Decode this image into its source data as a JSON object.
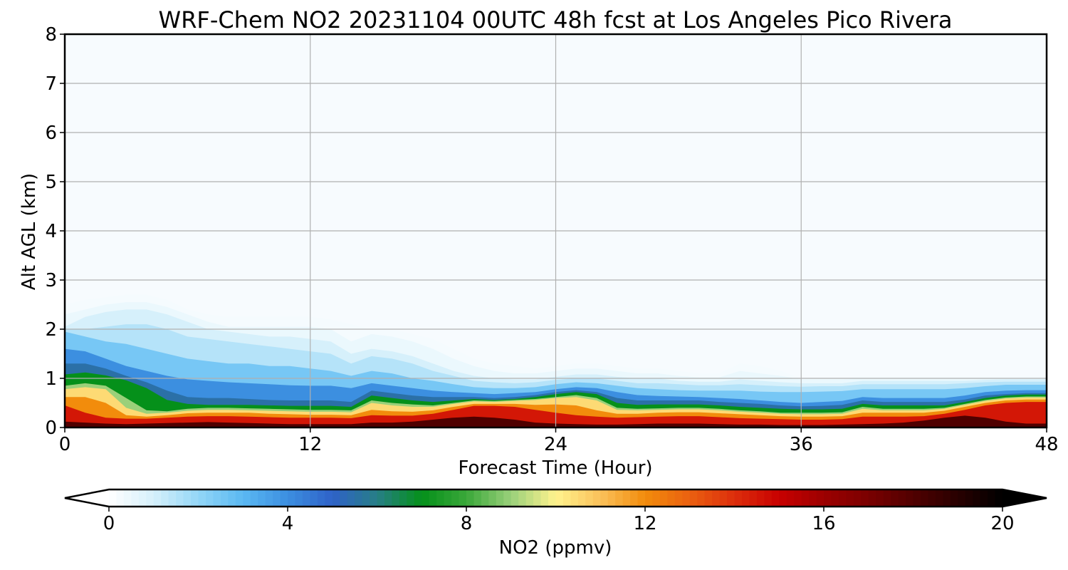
{
  "chart_data": {
    "type": "heatmap",
    "title": "WRF-Chem NO2  20231104 00UTC 48h fcst at Los Angeles Pico Rivera",
    "xlabel": "Forecast Time (Hour)",
    "ylabel": "Alt AGL (km)",
    "xlim": [
      0,
      48
    ],
    "ylim": [
      0,
      8
    ],
    "xticks": [
      0,
      12,
      24,
      36,
      48
    ],
    "yticks": [
      0,
      1,
      2,
      3,
      4,
      5,
      6,
      7,
      8
    ],
    "grid": true,
    "colorbar": {
      "label": "NO2  (ppmv)",
      "min": 0,
      "max": 20,
      "ticks": [
        0,
        4,
        8,
        12,
        16,
        20
      ],
      "extend": "both",
      "orientation": "horizontal",
      "placement": "bottom",
      "colors": [
        {
          "v": 0,
          "c": "#ffffff"
        },
        {
          "v": 1,
          "c": "#d6f0fb"
        },
        {
          "v": 2,
          "c": "#93d6f7"
        },
        {
          "v": 3,
          "c": "#5ab8f2"
        },
        {
          "v": 4,
          "c": "#3c8fe0"
        },
        {
          "v": 5,
          "c": "#2f62c8"
        },
        {
          "v": 6,
          "c": "#277e86"
        },
        {
          "v": 7,
          "c": "#05901a"
        },
        {
          "v": 8,
          "c": "#3aa83a"
        },
        {
          "v": 9,
          "c": "#9ad07a"
        },
        {
          "v": 10,
          "c": "#fff38e"
        },
        {
          "v": 11,
          "c": "#fbc15a"
        },
        {
          "v": 12,
          "c": "#f28c0c"
        },
        {
          "v": 13,
          "c": "#ea6010"
        },
        {
          "v": 14,
          "c": "#dd2e0c"
        },
        {
          "v": 15,
          "c": "#c80000"
        },
        {
          "v": 16,
          "c": "#9c0000"
        },
        {
          "v": 17,
          "c": "#7a0000"
        },
        {
          "v": 18,
          "c": "#500000"
        },
        {
          "v": 19,
          "c": "#280000"
        },
        {
          "v": 20,
          "c": "#000000"
        }
      ]
    },
    "hours": [
      0,
      1,
      2,
      3,
      4,
      5,
      6,
      7,
      8,
      9,
      10,
      11,
      12,
      13,
      14,
      15,
      16,
      17,
      18,
      19,
      20,
      21,
      22,
      23,
      24,
      25,
      26,
      27,
      28,
      29,
      30,
      31,
      32,
      33,
      34,
      35,
      36,
      37,
      38,
      39,
      40,
      41,
      42,
      43,
      44,
      45,
      46,
      47,
      48
    ],
    "layers": [
      {
        "min_value": 0.25,
        "top_km": [
          2.5,
          2.6,
          2.65,
          2.7,
          2.7,
          2.6,
          2.4,
          2.3,
          2.25,
          2.25,
          2.25,
          2.25,
          2.25,
          2.2,
          2.1,
          2.0,
          2.0,
          1.9,
          1.8,
          1.6,
          1.4,
          1.3,
          1.25,
          1.2,
          1.25,
          1.3,
          1.3,
          1.25,
          1.2,
          1.2,
          1.15,
          1.1,
          1.1,
          1.3,
          1.25,
          1.15,
          1.0,
          1.0,
          1.0,
          1.05,
          1.05,
          1.05,
          1.05,
          1.05,
          1.05,
          1.05,
          1.05,
          1.05,
          1.05
        ]
      },
      {
        "min_value": 0.5,
        "top_km": [
          2.3,
          2.4,
          2.5,
          2.55,
          2.55,
          2.45,
          2.3,
          2.15,
          2.05,
          2.05,
          2.05,
          2.05,
          2.05,
          2.0,
          1.75,
          1.9,
          1.85,
          1.75,
          1.6,
          1.4,
          1.25,
          1.15,
          1.1,
          1.1,
          1.15,
          1.2,
          1.2,
          1.15,
          1.1,
          1.1,
          1.05,
          1.02,
          1.02,
          1.15,
          1.1,
          1.05,
          0.98,
          0.98,
          0.98,
          1.0,
          1.0,
          1.0,
          1.0,
          1.0,
          1.0,
          1.0,
          1.0,
          1.0,
          1.0
        ]
      },
      {
        "min_value": 1.0,
        "top_km": [
          2.05,
          2.25,
          2.35,
          2.4,
          2.4,
          2.3,
          2.15,
          2.0,
          1.95,
          1.9,
          1.85,
          1.85,
          1.8,
          1.75,
          1.5,
          1.6,
          1.55,
          1.45,
          1.3,
          1.15,
          1.05,
          1.0,
          0.98,
          0.98,
          1.03,
          1.08,
          1.08,
          1.03,
          1.0,
          1.0,
          0.95,
          0.93,
          0.93,
          0.98,
          0.95,
          0.92,
          0.9,
          0.9,
          0.9,
          0.95,
          0.95,
          0.95,
          0.95,
          0.95,
          0.95,
          0.97,
          0.98,
          0.98,
          0.98
        ]
      },
      {
        "min_value": 1.5,
        "top_km": [
          2.0,
          2.0,
          2.05,
          2.1,
          2.1,
          2.0,
          1.85,
          1.8,
          1.75,
          1.7,
          1.65,
          1.6,
          1.55,
          1.5,
          1.3,
          1.45,
          1.4,
          1.3,
          1.15,
          1.05,
          0.95,
          0.92,
          0.9,
          0.92,
          0.97,
          1.0,
          1.0,
          0.95,
          0.9,
          0.9,
          0.88,
          0.86,
          0.86,
          0.88,
          0.86,
          0.84,
          0.83,
          0.84,
          0.84,
          0.88,
          0.88,
          0.88,
          0.88,
          0.88,
          0.9,
          0.92,
          0.93,
          0.93,
          0.93
        ]
      },
      {
        "min_value": 2.5,
        "top_km": [
          1.95,
          1.85,
          1.75,
          1.7,
          1.6,
          1.5,
          1.4,
          1.35,
          1.3,
          1.3,
          1.25,
          1.25,
          1.2,
          1.15,
          1.05,
          1.15,
          1.1,
          1.0,
          0.95,
          0.88,
          0.82,
          0.8,
          0.8,
          0.82,
          0.88,
          0.92,
          0.9,
          0.85,
          0.8,
          0.78,
          0.76,
          0.75,
          0.75,
          0.75,
          0.73,
          0.72,
          0.72,
          0.73,
          0.74,
          0.78,
          0.78,
          0.78,
          0.78,
          0.78,
          0.8,
          0.84,
          0.87,
          0.87,
          0.87
        ]
      },
      {
        "min_value": 4.0,
        "top_km": [
          1.6,
          1.55,
          1.4,
          1.25,
          1.15,
          1.05,
          0.98,
          0.95,
          0.92,
          0.9,
          0.88,
          0.86,
          0.85,
          0.85,
          0.8,
          0.9,
          0.85,
          0.8,
          0.75,
          0.72,
          0.7,
          0.68,
          0.7,
          0.72,
          0.78,
          0.82,
          0.8,
          0.72,
          0.66,
          0.64,
          0.63,
          0.62,
          0.6,
          0.58,
          0.55,
          0.52,
          0.5,
          0.52,
          0.54,
          0.62,
          0.6,
          0.6,
          0.6,
          0.6,
          0.65,
          0.72,
          0.75,
          0.76,
          0.76
        ]
      },
      {
        "min_value": 5.5,
        "top_km": [
          1.3,
          1.3,
          1.2,
          1.05,
          0.92,
          0.75,
          0.62,
          0.6,
          0.6,
          0.58,
          0.56,
          0.55,
          0.55,
          0.55,
          0.52,
          0.75,
          0.7,
          0.65,
          0.62,
          0.62,
          0.62,
          0.6,
          0.62,
          0.66,
          0.72,
          0.76,
          0.72,
          0.6,
          0.55,
          0.55,
          0.55,
          0.55,
          0.52,
          0.5,
          0.48,
          0.45,
          0.43,
          0.44,
          0.46,
          0.55,
          0.52,
          0.52,
          0.52,
          0.52,
          0.57,
          0.65,
          0.68,
          0.7,
          0.7
        ]
      },
      {
        "min_value": 7.0,
        "top_km": [
          1.08,
          1.12,
          1.06,
          0.96,
          0.8,
          0.56,
          0.48,
          0.46,
          0.46,
          0.46,
          0.45,
          0.44,
          0.44,
          0.44,
          0.42,
          0.65,
          0.6,
          0.55,
          0.52,
          0.55,
          0.58,
          0.56,
          0.58,
          0.62,
          0.68,
          0.72,
          0.68,
          0.5,
          0.46,
          0.47,
          0.47,
          0.47,
          0.45,
          0.42,
          0.4,
          0.38,
          0.37,
          0.37,
          0.38,
          0.48,
          0.45,
          0.45,
          0.45,
          0.45,
          0.52,
          0.6,
          0.65,
          0.67,
          0.67
        ]
      },
      {
        "min_value": 9.0,
        "top_km": [
          0.85,
          0.9,
          0.85,
          0.6,
          0.35,
          0.33,
          0.38,
          0.4,
          0.4,
          0.39,
          0.38,
          0.37,
          0.36,
          0.36,
          0.35,
          0.55,
          0.5,
          0.47,
          0.45,
          0.5,
          0.55,
          0.54,
          0.56,
          0.58,
          0.62,
          0.66,
          0.6,
          0.4,
          0.38,
          0.39,
          0.4,
          0.4,
          0.38,
          0.35,
          0.33,
          0.3,
          0.3,
          0.3,
          0.31,
          0.42,
          0.38,
          0.38,
          0.38,
          0.4,
          0.48,
          0.56,
          0.61,
          0.63,
          0.63
        ]
      },
      {
        "min_value": 10.5,
        "top_km": [
          0.78,
          0.82,
          0.78,
          0.4,
          0.28,
          0.3,
          0.34,
          0.36,
          0.36,
          0.35,
          0.34,
          0.33,
          0.32,
          0.32,
          0.31,
          0.5,
          0.45,
          0.42,
          0.42,
          0.48,
          0.53,
          0.52,
          0.54,
          0.56,
          0.6,
          0.62,
          0.55,
          0.36,
          0.35,
          0.36,
          0.37,
          0.37,
          0.35,
          0.32,
          0.3,
          0.28,
          0.27,
          0.27,
          0.28,
          0.38,
          0.35,
          0.35,
          0.35,
          0.38,
          0.46,
          0.54,
          0.59,
          0.61,
          0.61
        ]
      },
      {
        "min_value": 12.0,
        "top_km": [
          0.62,
          0.62,
          0.5,
          0.25,
          0.22,
          0.25,
          0.29,
          0.3,
          0.3,
          0.3,
          0.28,
          0.27,
          0.26,
          0.26,
          0.25,
          0.36,
          0.33,
          0.32,
          0.35,
          0.42,
          0.48,
          0.48,
          0.48,
          0.46,
          0.47,
          0.45,
          0.35,
          0.28,
          0.28,
          0.3,
          0.31,
          0.31,
          0.29,
          0.27,
          0.25,
          0.23,
          0.22,
          0.22,
          0.23,
          0.3,
          0.3,
          0.3,
          0.3,
          0.34,
          0.42,
          0.5,
          0.55,
          0.57,
          0.57
        ]
      },
      {
        "min_value": 14.5,
        "top_km": [
          0.45,
          0.3,
          0.2,
          0.18,
          0.18,
          0.2,
          0.22,
          0.23,
          0.23,
          0.22,
          0.21,
          0.2,
          0.2,
          0.2,
          0.19,
          0.25,
          0.24,
          0.24,
          0.28,
          0.36,
          0.44,
          0.44,
          0.42,
          0.36,
          0.3,
          0.25,
          0.22,
          0.2,
          0.21,
          0.22,
          0.23,
          0.23,
          0.21,
          0.19,
          0.18,
          0.17,
          0.16,
          0.16,
          0.17,
          0.22,
          0.22,
          0.22,
          0.23,
          0.28,
          0.36,
          0.45,
          0.5,
          0.52,
          0.52
        ]
      },
      {
        "min_value": 18.0,
        "top_km": [
          0.12,
          0.1,
          0.08,
          0.07,
          0.08,
          0.09,
          0.1,
          0.11,
          0.1,
          0.09,
          0.08,
          0.07,
          0.07,
          0.07,
          0.07,
          0.1,
          0.1,
          0.12,
          0.16,
          0.2,
          0.22,
          0.2,
          0.16,
          0.1,
          0.08,
          0.07,
          0.06,
          0.06,
          0.07,
          0.08,
          0.08,
          0.08,
          0.07,
          0.06,
          0.06,
          0.05,
          0.05,
          0.05,
          0.06,
          0.07,
          0.08,
          0.1,
          0.14,
          0.2,
          0.24,
          0.2,
          0.12,
          0.08,
          0.08
        ]
      }
    ]
  }
}
